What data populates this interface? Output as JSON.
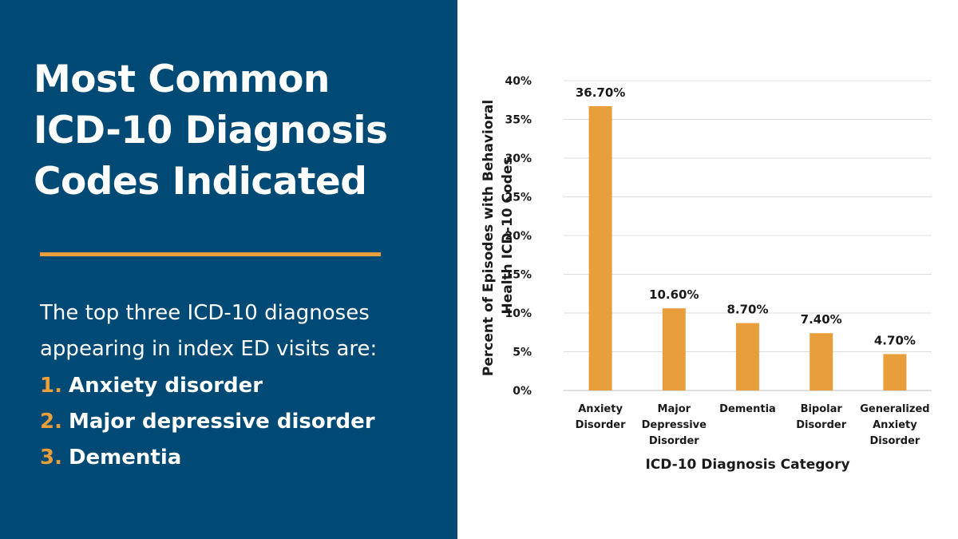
{
  "slide": {
    "title_lines": [
      "Most Common",
      "ICD-10 Diagnosis",
      "Codes Indicated"
    ],
    "intro_lines": [
      "The top three ICD-10 diagnoses",
      "appearing in index ED visits are:"
    ],
    "list": [
      {
        "num": "1.",
        "text": "Anxiety disorder"
      },
      {
        "num": "2.",
        "text": "Major depressive disorder"
      },
      {
        "num": "3.",
        "text": "Dementia"
      }
    ],
    "colors": {
      "panel": "#004a75",
      "accent": "#e99e3c",
      "bar": "#e99e3c"
    }
  },
  "chart_data": {
    "type": "bar",
    "categories": [
      [
        "Anxiety",
        "Disorder"
      ],
      [
        "Major",
        "Depressive",
        "Disorder"
      ],
      [
        "Dementia"
      ],
      [
        "Bipolar",
        "Disorder"
      ],
      [
        "Generalized",
        "Anxiety",
        "Disorder"
      ]
    ],
    "values": [
      36.7,
      10.6,
      8.7,
      7.4,
      4.7
    ],
    "data_labels": [
      "36.70%",
      "10.60%",
      "8.70%",
      "7.40%",
      "4.70%"
    ],
    "ylim": [
      0,
      40
    ],
    "yticks": [
      0,
      5,
      10,
      15,
      20,
      25,
      30,
      35,
      40
    ],
    "ytick_labels": [
      "0%",
      "5%",
      "10%",
      "15%",
      "20%",
      "25%",
      "30%",
      "35%",
      "40%"
    ],
    "ylabel_lines": [
      "Percent of Episodes with Behavioral",
      "Health ICD-10 Codes"
    ],
    "xlabel": "ICD-10 Diagnosis Category",
    "grid": true,
    "legend": false
  }
}
